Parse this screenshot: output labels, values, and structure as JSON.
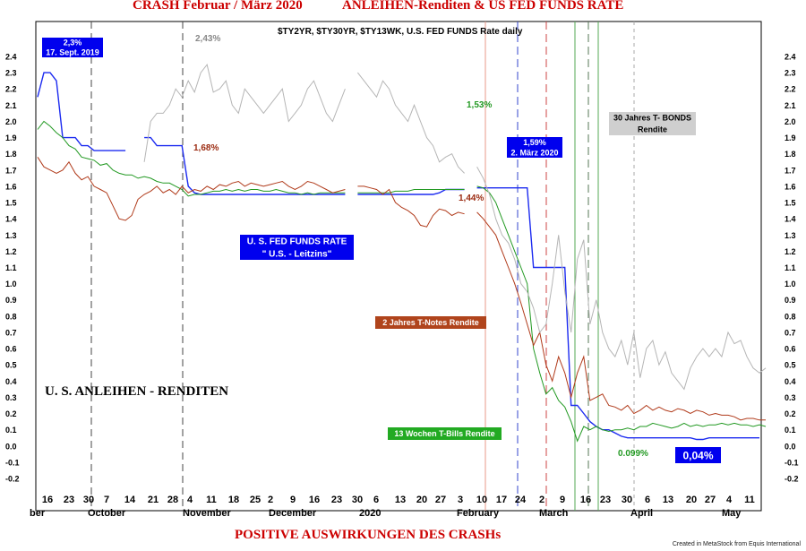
{
  "header": {
    "title_left": "CRASH Februar / März 2020",
    "title_right": "ANLEIHEN-Renditen & US FED FUNDS RATE"
  },
  "footer": {
    "title": "POSITIVE AUSWIRKUNGEN DES CRASHs",
    "credit": "Created in MetaStock from Equis International"
  },
  "colors": {
    "background": "#ffffff",
    "title_red": "#cc0000",
    "fed_funds": "#1c2bf0",
    "ten_week_bills": "#229922",
    "two_year": "#b03a1a",
    "thirty_year": "#b5b5b5",
    "box_blue": "#0000ee",
    "box_green": "#22aa22",
    "box_brown": "#b0441c",
    "box_gray": "#cfcfcf"
  },
  "chart_data": {
    "type": "line",
    "title": "$TY2YR, $TY30YR, $TY13WK, U.S.  FED FUNDS Rate     daily",
    "ylim": [
      -0.25,
      2.45
    ],
    "y_ticks": [
      "2.4",
      "2.3",
      "2.2",
      "2.1",
      "2.0",
      "1.9",
      "1.8",
      "1.7",
      "1.6",
      "1.5",
      "1.4",
      "1.3",
      "1.2",
      "1.1",
      "1.0",
      "0.9",
      "0.8",
      "0.7",
      "0.6",
      "0.5",
      "0.4",
      "0.3",
      "0.2",
      "0.1",
      "0.0",
      "-0.1",
      "-0.2"
    ],
    "grid": false,
    "x_day_labels": [
      "16",
      "23",
      "30",
      "7",
      "14",
      "21",
      "28",
      "4",
      "11",
      "18",
      "25",
      "2",
      "9",
      "16",
      "23",
      "30",
      "6",
      "13",
      "20",
      "27",
      "3",
      "10",
      "17",
      "24",
      "2",
      "9",
      "16",
      "23",
      "30",
      "6",
      "13",
      "20",
      "27",
      "4",
      "11"
    ],
    "x_month_labels": [
      "ber",
      "October",
      "November",
      "December",
      "2020",
      "February",
      "March",
      "April",
      "May"
    ],
    "series": [
      {
        "name": "U. S.  FED FUNDS RATE",
        "values": [
          2.15,
          2.3,
          2.3,
          2.25,
          1.9,
          1.9,
          1.9,
          1.85,
          1.85,
          1.82,
          1.82,
          1.82,
          1.82,
          1.82,
          1.82,
          null,
          null,
          1.9,
          1.9,
          1.85,
          1.85,
          1.85,
          1.85,
          1.85,
          1.6,
          1.56,
          1.55,
          1.55,
          1.55,
          1.55,
          1.55,
          1.55,
          1.55,
          1.55,
          1.55,
          1.55,
          1.55,
          1.55,
          1.55,
          1.55,
          1.55,
          1.55,
          1.55,
          1.55,
          1.55,
          1.55,
          1.55,
          1.55,
          1.55,
          1.55,
          null,
          1.55,
          1.55,
          1.55,
          1.55,
          1.55,
          1.55,
          1.55,
          1.55,
          1.55,
          1.55,
          1.55,
          1.55,
          1.55,
          1.56,
          1.58,
          1.58,
          1.58,
          1.58,
          null,
          1.59,
          1.59,
          1.59,
          1.59,
          1.59,
          1.59,
          1.59,
          1.59,
          1.59,
          1.1,
          1.1,
          1.1,
          1.1,
          1.1,
          1.1,
          0.25,
          0.25,
          0.2,
          0.15,
          0.12,
          0.1,
          0.1,
          0.08,
          0.06,
          0.05,
          0.05,
          0.05,
          0.05,
          0.05,
          0.05,
          0.05,
          0.05,
          0.05,
          0.05,
          0.05,
          0.04,
          0.04,
          0.05,
          0.05,
          0.05,
          0.05,
          0.05,
          0.05,
          0.05,
          0.05,
          0.05
        ]
      },
      {
        "name": "13 Wochen T-Bills  Rendite",
        "values": [
          1.95,
          2.0,
          1.97,
          1.93,
          1.9,
          1.85,
          1.83,
          1.78,
          1.77,
          1.76,
          1.73,
          1.74,
          1.7,
          1.68,
          1.67,
          1.67,
          1.65,
          1.66,
          1.65,
          1.63,
          1.62,
          1.62,
          1.6,
          1.58,
          1.54,
          1.55,
          1.55,
          1.56,
          1.57,
          1.57,
          1.58,
          1.57,
          1.58,
          1.57,
          1.58,
          1.58,
          1.57,
          1.57,
          1.58,
          1.57,
          1.56,
          1.56,
          1.55,
          1.56,
          1.55,
          1.56,
          1.56,
          1.56,
          1.56,
          1.56,
          null,
          1.56,
          1.56,
          1.56,
          1.56,
          1.56,
          1.56,
          1.57,
          1.57,
          1.57,
          1.58,
          1.58,
          1.58,
          1.58,
          1.58,
          1.58,
          1.58,
          1.58,
          1.58,
          null,
          1.6,
          1.59,
          1.56,
          1.5,
          1.4,
          1.3,
          1.2,
          1.1,
          1.0,
          0.6,
          0.45,
          0.32,
          0.36,
          0.28,
          0.24,
          0.15,
          0.03,
          0.12,
          0.1,
          0.12,
          0.1,
          0.09,
          0.1,
          0.1,
          0.11,
          0.1,
          0.12,
          0.12,
          0.14,
          0.13,
          0.12,
          0.11,
          0.12,
          0.14,
          0.12,
          0.13,
          0.12,
          0.13,
          0.13,
          0.14,
          0.13,
          0.14,
          0.13,
          0.13,
          0.12,
          0.13,
          0.12
        ]
      },
      {
        "name": "2 Jahres T-Notes  Rendite",
        "values": [
          1.78,
          1.72,
          1.7,
          1.68,
          1.7,
          1.75,
          1.68,
          1.64,
          1.66,
          1.6,
          1.58,
          1.56,
          1.48,
          1.4,
          1.39,
          1.42,
          1.52,
          1.55,
          1.57,
          1.6,
          1.56,
          1.58,
          1.55,
          1.6,
          1.56,
          1.58,
          1.57,
          1.6,
          1.58,
          1.61,
          1.6,
          1.62,
          1.63,
          1.6,
          1.62,
          1.61,
          1.6,
          1.61,
          1.62,
          1.63,
          1.6,
          1.58,
          1.6,
          1.63,
          1.62,
          1.6,
          1.58,
          1.56,
          1.57,
          1.58,
          null,
          1.6,
          1.6,
          1.59,
          1.58,
          1.55,
          1.58,
          1.5,
          1.47,
          1.45,
          1.42,
          1.36,
          1.35,
          1.42,
          1.46,
          1.45,
          1.42,
          1.44,
          1.43,
          null,
          1.44,
          1.4,
          1.35,
          1.3,
          1.2,
          1.1,
          1.0,
          0.88,
          0.75,
          0.62,
          0.7,
          0.5,
          0.4,
          0.55,
          0.45,
          0.3,
          0.45,
          0.55,
          0.28,
          0.3,
          0.32,
          0.25,
          0.24,
          0.22,
          0.25,
          0.2,
          0.22,
          0.25,
          0.22,
          0.24,
          0.22,
          0.21,
          0.23,
          0.22,
          0.2,
          0.22,
          0.21,
          0.19,
          0.2,
          0.19,
          0.19,
          0.18,
          0.16,
          0.17,
          0.17,
          0.16,
          0.16
        ]
      },
      {
        "name": "30 Jahres T- BONDS  Rendite",
        "values": [
          null,
          null,
          null,
          null,
          null,
          null,
          null,
          null,
          null,
          null,
          null,
          null,
          null,
          null,
          null,
          null,
          null,
          1.75,
          2.0,
          2.05,
          2.05,
          2.1,
          2.2,
          2.15,
          2.25,
          2.18,
          2.3,
          2.35,
          2.18,
          2.2,
          2.25,
          2.1,
          2.05,
          2.2,
          2.15,
          2.1,
          2.05,
          2.1,
          2.15,
          2.2,
          2.0,
          2.05,
          2.1,
          2.2,
          2.25,
          2.15,
          2.05,
          2.0,
          2.1,
          2.2,
          null,
          2.3,
          2.25,
          2.2,
          2.15,
          2.25,
          2.2,
          2.1,
          2.05,
          2.0,
          2.1,
          2.0,
          1.9,
          1.85,
          1.75,
          1.78,
          1.8,
          1.72,
          1.68,
          null,
          1.72,
          1.65,
          1.55,
          1.4,
          1.3,
          1.25,
          1.15,
          1.0,
          0.95,
          0.85,
          0.7,
          0.75,
          1.0,
          1.3,
          0.95,
          0.7,
          1.15,
          1.27,
          0.75,
          0.9,
          0.7,
          0.6,
          0.55,
          0.65,
          0.5,
          0.7,
          0.42,
          0.6,
          0.65,
          0.5,
          0.58,
          0.45,
          0.4,
          0.35,
          0.48,
          0.55,
          0.6,
          0.55,
          0.6,
          0.55,
          0.7,
          0.63,
          0.65,
          0.55,
          0.48,
          0.45,
          0.48
        ]
      }
    ],
    "annotations": [
      {
        "text": "2,43%",
        "color": "#888888"
      },
      {
        "text": "1,68%",
        "color": "#9b2a10"
      },
      {
        "text": "1,53%",
        "color": "#229922"
      },
      {
        "text": "1,44%",
        "color": "#9b2a10"
      },
      {
        "text": "0.099%",
        "color": "#229922"
      }
    ],
    "boxes": {
      "fed_2019": [
        "2,3%",
        "17. Sept. 2019"
      ],
      "fed_2020": [
        "1,59%",
        "2. März 2020"
      ],
      "fed_label": [
        "U. S.  FED FUNDS RATE",
        "\" U.S. - Leitzins\""
      ],
      "two_year_label": "2 Jahres T-Notes  Rendite",
      "bills_label": "13 Wochen T-Bills  Rendite",
      "bonds_label": [
        "30 Jahres T- BONDS",
        "Rendite"
      ],
      "current_rate": "0,04%"
    },
    "section_label": "U. S.  ANLEIHEN - RENDITEN"
  }
}
